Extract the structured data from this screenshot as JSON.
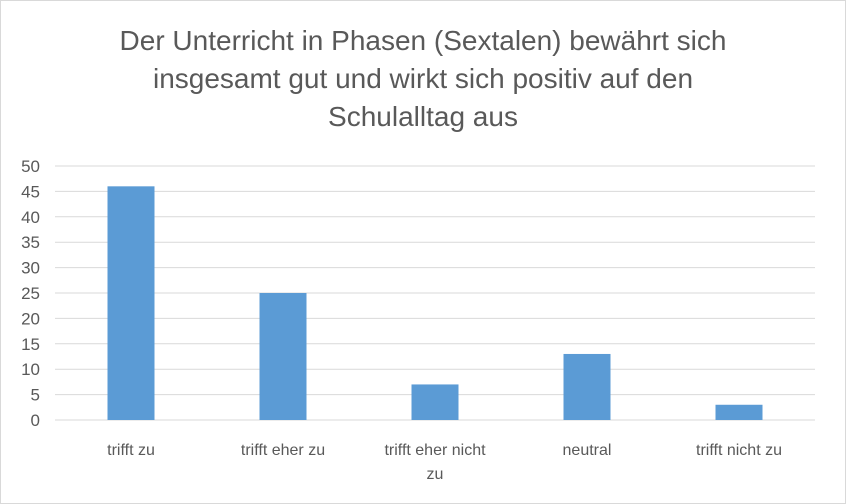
{
  "chart_data": {
    "type": "bar",
    "title_lines": [
      "Der Unterricht in Phasen (Sextalen) bewährt sich",
      "insgesamt gut und wirkt sich positiv auf den",
      "Schulalltag aus"
    ],
    "categories": [
      "trifft zu",
      "trifft eher zu",
      "trifft eher nicht zu",
      "neutral",
      "trifft nicht zu"
    ],
    "category_label_lines": [
      [
        "trifft zu"
      ],
      [
        "trifft eher zu"
      ],
      [
        "trifft eher nicht",
        "zu"
      ],
      [
        "neutral"
      ],
      [
        "trifft nicht zu"
      ]
    ],
    "values": [
      46,
      25,
      7,
      13,
      3
    ],
    "xlabel": "",
    "ylabel": "",
    "ylim": [
      0,
      50
    ],
    "yticks": [
      0,
      5,
      10,
      15,
      20,
      25,
      30,
      35,
      40,
      45,
      50
    ],
    "grid": true,
    "legend": "none",
    "bar_color": "#5b9bd5"
  }
}
